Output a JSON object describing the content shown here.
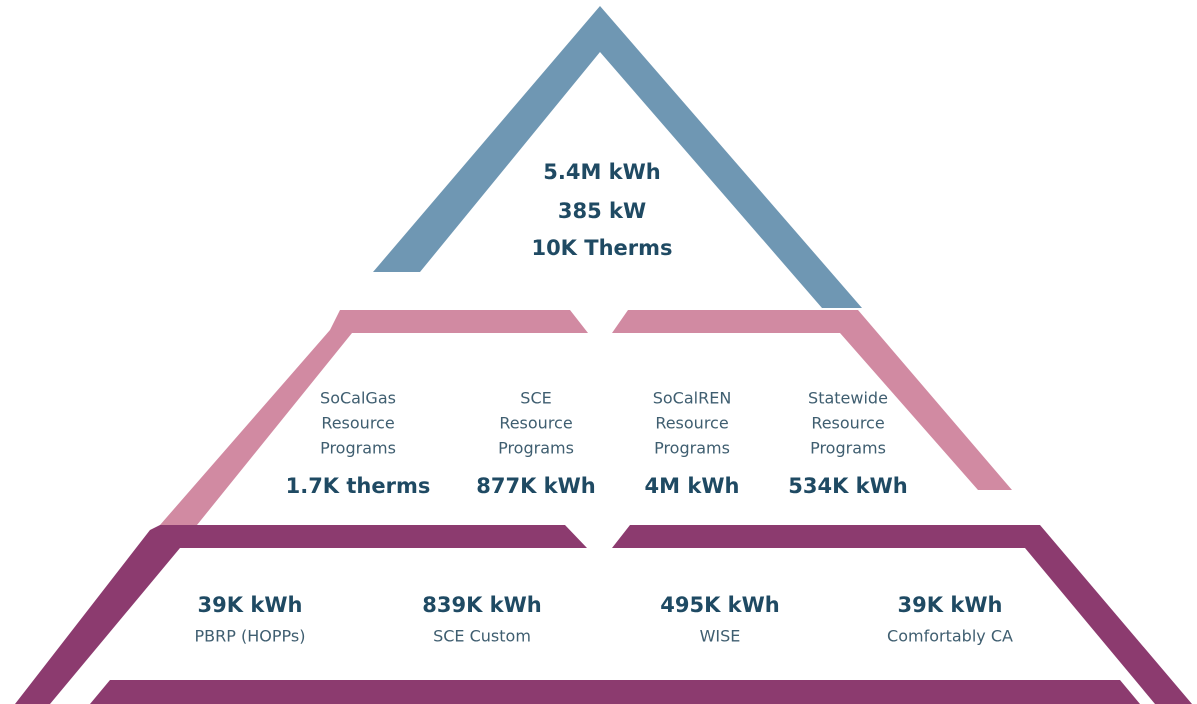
{
  "top": {
    "lines": [
      "5.4M kWh",
      "385 kW",
      "10K Therms"
    ]
  },
  "middle": [
    {
      "label": [
        "SoCalGas",
        "Resource",
        "Programs"
      ],
      "value": "1.7K therms"
    },
    {
      "label": [
        "SCE",
        "Resource",
        "Programs"
      ],
      "value": "877K kWh"
    },
    {
      "label": [
        "SoCalREN",
        "Resource",
        "Programs"
      ],
      "value": "4M kWh"
    },
    {
      "label": [
        "Statewide",
        "Resource",
        "Programs"
      ],
      "value": "534K kWh"
    }
  ],
  "bottom": [
    {
      "value": "39K kWh",
      "label": "PBRP (HOPPs)"
    },
    {
      "value": "839K kWh",
      "label": "SCE Custom"
    },
    {
      "value": "495K kWh",
      "label": "WISE"
    },
    {
      "value": "39K kWh",
      "label": "Comfortably CA"
    }
  ]
}
